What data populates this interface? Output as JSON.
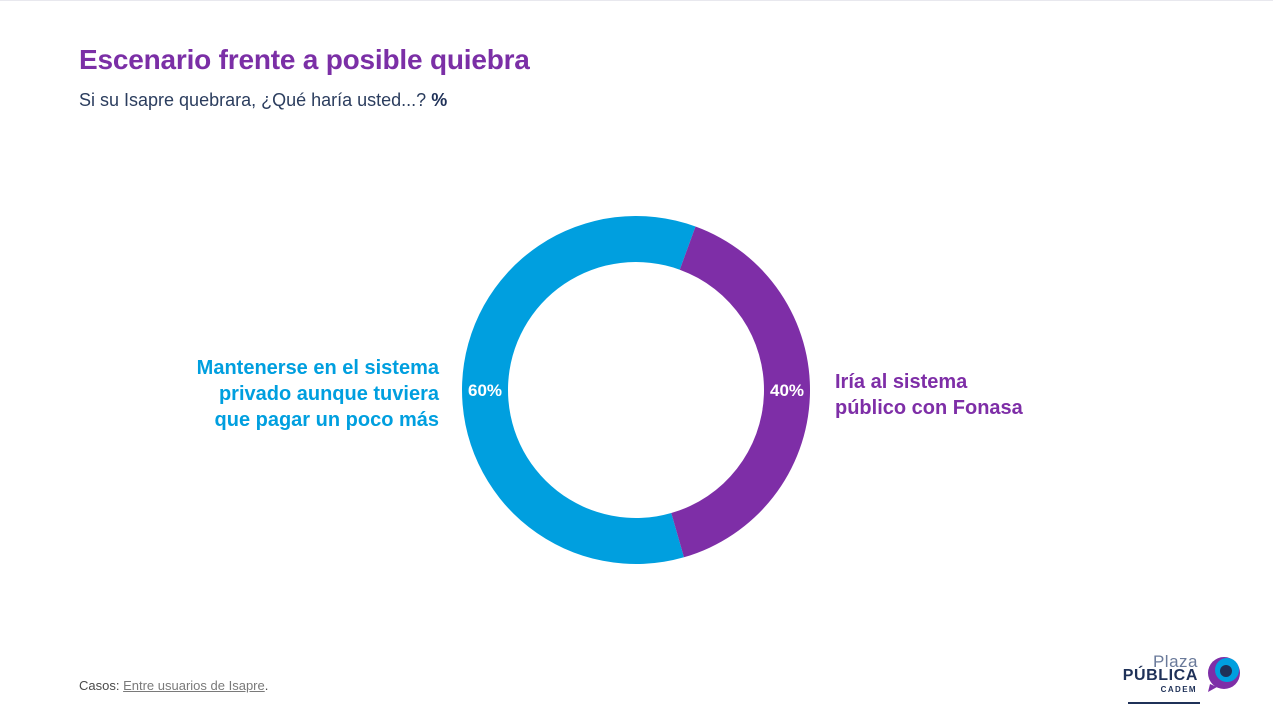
{
  "title": "Escenario frente a posible quiebra",
  "subtitle": {
    "text": "Si su Isapre quebrara, ¿Qué haría usted...? ",
    "unit": "%"
  },
  "chart_data": {
    "type": "pie",
    "donut": true,
    "categories": [
      "Mantenerse en el sistema privado aunque tuviera que pagar un poco más",
      "Iría al sistema público con Fonasa"
    ],
    "values": [
      60,
      40
    ],
    "value_labels": [
      "60%",
      "40%"
    ],
    "colors": [
      "#009fdf",
      "#7e2ea7"
    ],
    "label_lines": [
      [
        "Mantenerse en el sistema",
        "privado aunque tuviera",
        "que pagar un poco más"
      ],
      [
        "Iría al sistema",
        "público con Fonasa"
      ]
    ]
  },
  "footer": {
    "casos_label": "Casos",
    "casos_value": "Entre usuarios de Isapre"
  },
  "logo": {
    "line1": "Plaza",
    "line2": "PÚBLICA",
    "line3": "CADEM"
  }
}
